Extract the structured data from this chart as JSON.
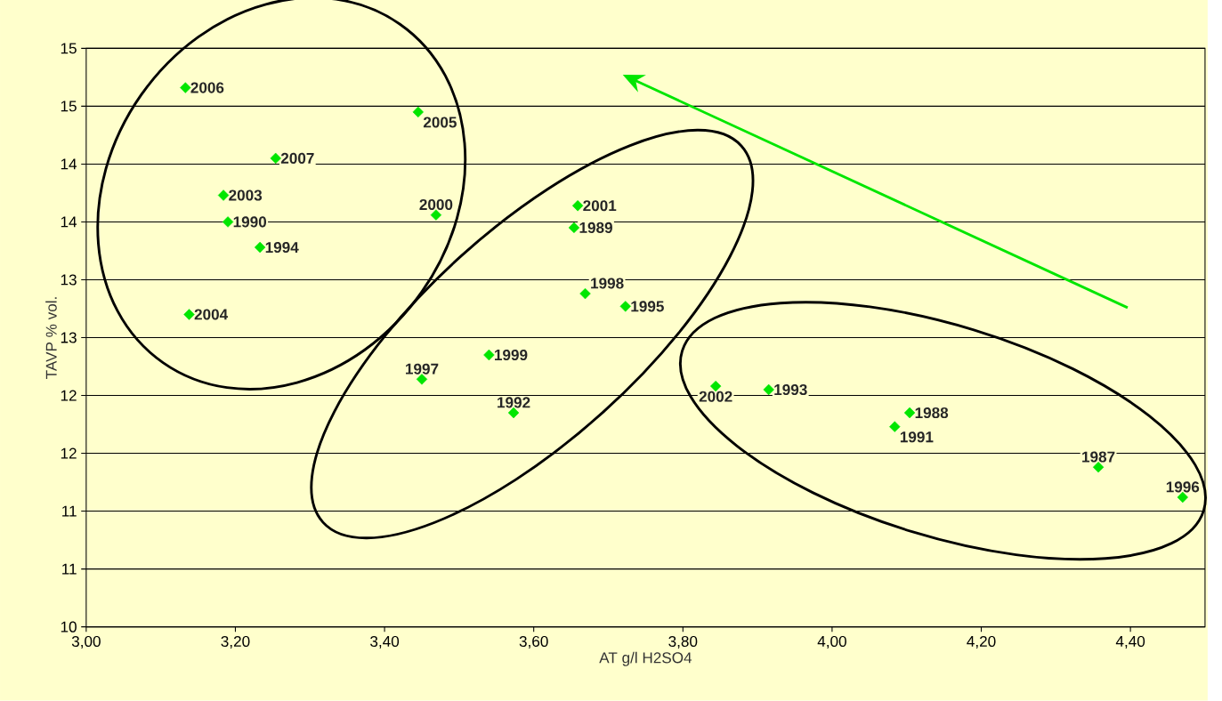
{
  "chart_data": {
    "type": "scatter",
    "xlabel": "AT g/l H2SO4",
    "ylabel": "TAVP % vol.",
    "color": "#00e600",
    "marker": "diamond",
    "grid": "y",
    "x": [
      3.133,
      3.445,
      3.254,
      3.184,
      3.19,
      3.233,
      3.138,
      3.469,
      3.659,
      3.654,
      3.669,
      3.723,
      3.54,
      3.45,
      3.573,
      3.844,
      3.915,
      4.104,
      4.084,
      4.357,
      4.47
    ],
    "values": [
      14.66,
      14.45,
      14.05,
      13.73,
      13.5,
      13.28,
      12.7,
      13.56,
      13.64,
      13.45,
      12.88,
      12.77,
      12.35,
      12.14,
      11.85,
      12.08,
      12.05,
      11.85,
      11.73,
      11.38,
      11.12
    ],
    "xlim": [
      3.0,
      4.5
    ],
    "ylim": [
      10,
      15
    ],
    "xticks": [
      {
        "value": 3.0,
        "label": "3,00"
      },
      {
        "value": 3.2,
        "label": "3,20"
      },
      {
        "value": 3.4,
        "label": "3,40"
      },
      {
        "value": 3.6,
        "label": "3,60"
      },
      {
        "value": 3.8,
        "label": "3,80"
      },
      {
        "value": 4.0,
        "label": "4,00"
      },
      {
        "value": 4.2,
        "label": "4,20"
      },
      {
        "value": 4.4,
        "label": "4,40"
      }
    ],
    "yticks": [
      10,
      {
        "value": 10.5,
        "label": "11"
      },
      11,
      {
        "value": 11.5,
        "label": "12"
      },
      12,
      {
        "value": 12.5,
        "label": "13"
      },
      13,
      {
        "value": 13.5,
        "label": "14"
      },
      14,
      {
        "value": 14.5,
        "label": "15"
      },
      15
    ],
    "annotations": [
      {
        "text": "2006",
        "x": 3.133,
        "y": 14.66
      },
      {
        "text": "2005",
        "x": 3.445,
        "y": 14.45
      },
      {
        "text": "2007",
        "x": 3.254,
        "y": 14.05
      },
      {
        "text": "2003",
        "x": 3.184,
        "y": 13.73
      },
      {
        "text": "1990",
        "x": 3.19,
        "y": 13.5
      },
      {
        "text": "1994",
        "x": 3.233,
        "y": 13.28
      },
      {
        "text": "2004",
        "x": 3.138,
        "y": 12.7
      },
      {
        "text": "2000",
        "x": 3.469,
        "y": 13.56
      },
      {
        "text": "2001",
        "x": 3.659,
        "y": 13.64
      },
      {
        "text": "1989",
        "x": 3.654,
        "y": 13.45
      },
      {
        "text": "1998",
        "x": 3.669,
        "y": 12.88
      },
      {
        "text": "1995",
        "x": 3.723,
        "y": 12.77
      },
      {
        "text": "1999",
        "x": 3.54,
        "y": 12.35
      },
      {
        "text": "1997",
        "x": 3.45,
        "y": 12.14
      },
      {
        "text": "1992",
        "x": 3.573,
        "y": 11.85
      },
      {
        "text": "2002",
        "x": 3.844,
        "y": 12.08
      },
      {
        "text": "1993",
        "x": 3.915,
        "y": 12.05
      },
      {
        "text": "1988",
        "x": 4.104,
        "y": 11.85
      },
      {
        "text": "1991",
        "x": 4.084,
        "y": 11.73
      },
      {
        "text": "1987",
        "x": 4.357,
        "y": 11.38
      },
      {
        "text": "1996",
        "x": 4.47,
        "y": 11.12
      }
    ]
  }
}
